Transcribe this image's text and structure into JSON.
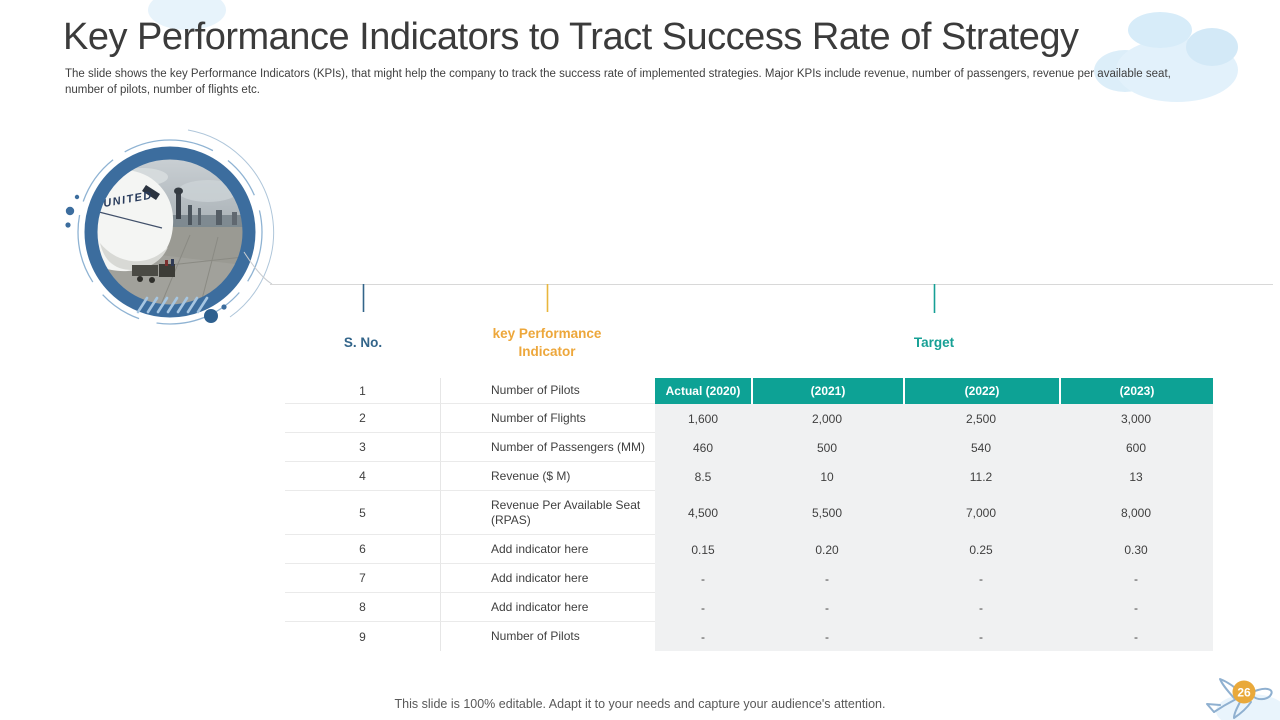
{
  "slide": {
    "title": "Key Performance Indicators to Tract Success Rate of Strategy",
    "subtitle": "The slide shows the key Performance Indicators (KPIs), that might help the company to track the success rate of implemented strategies. Major KPIs include revenue, number of passengers, revenue per available seat, number of pilots, number of flights etc.",
    "footer": "This slide is 100% editable. Adapt it to your needs and capture your audience's attention.",
    "slide_number": "26"
  },
  "image": {
    "description": "united-airlines-plane-photo-in-blue-circle",
    "livery_text": "UNITED"
  },
  "table": {
    "group_headers": [
      {
        "label": "S. No.",
        "color": "#33658A"
      },
      {
        "label": "key Performance Indicator",
        "color": "#EDA73B"
      },
      {
        "label": "Target",
        "color": "#16A095"
      }
    ],
    "year_headers": [
      "Actual (2020)",
      "(2021)",
      "(2022)",
      "(2023)"
    ],
    "rows": [
      {
        "sno": "1",
        "kpi": "Number of Pilots",
        "values": null
      },
      {
        "sno": "2",
        "kpi": "Number of Flights",
        "values": [
          "1,600",
          "2,000",
          "2,500",
          "3,000"
        ]
      },
      {
        "sno": "3",
        "kpi": "Number of Passengers (MM)",
        "values": [
          "460",
          "500",
          "540",
          "600"
        ]
      },
      {
        "sno": "4",
        "kpi": "Revenue ($ M)",
        "values": [
          "8.5",
          "10",
          "11.2",
          "13"
        ]
      },
      {
        "sno": "5",
        "kpi": "Revenue Per Available Seat (RPAS)",
        "values": [
          "4,500",
          "5,500",
          "7,000",
          "8,000"
        ]
      },
      {
        "sno": "6",
        "kpi": "Add indicator here",
        "values": [
          "0.15",
          "0.20",
          "0.25",
          "0.30"
        ]
      },
      {
        "sno": "7",
        "kpi": "Add indicator here",
        "values": [
          "-",
          "-",
          "-",
          "-"
        ]
      },
      {
        "sno": "8",
        "kpi": "Add indicator here",
        "values": [
          "-",
          "-",
          "-",
          "-"
        ]
      },
      {
        "sno": "9",
        "kpi": "Number of Pilots",
        "values": [
          "-",
          "-",
          "-",
          "-"
        ]
      }
    ]
  },
  "colors": {
    "accent_teal": "#0DA295",
    "accent_gold": "#EDA73B",
    "accent_steel_blue": "#33658A",
    "ring_blue": "#3C6D9E",
    "value_area_bg": "#F0F1F2",
    "badge_orange": "#E9A93B"
  }
}
